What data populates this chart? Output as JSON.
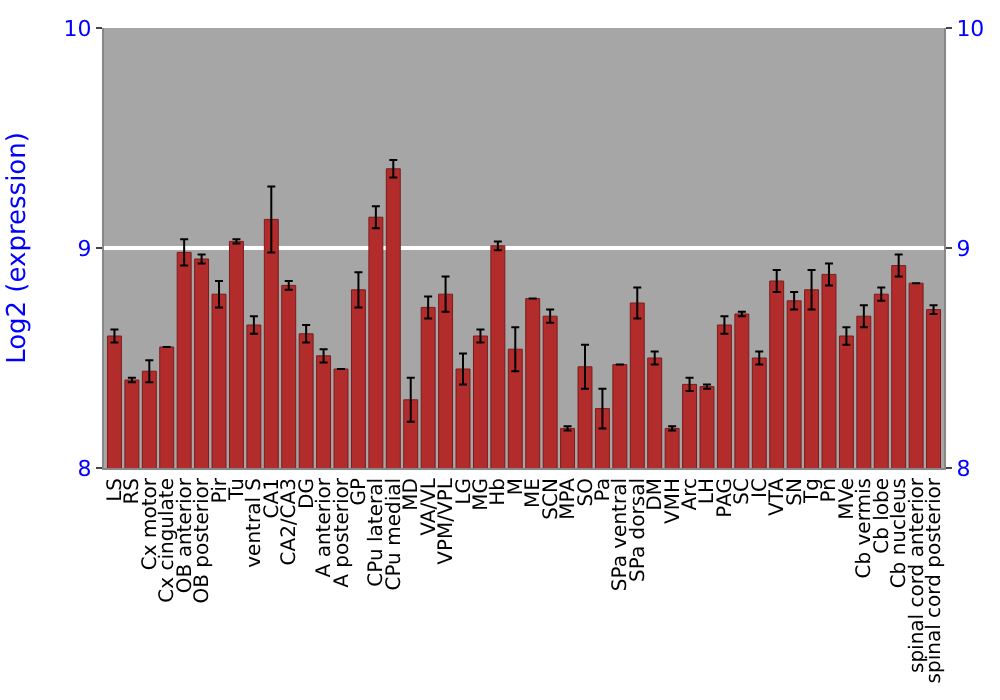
{
  "chart_data": {
    "type": "bar",
    "ylabel": "Log2 (expression)",
    "categories": [
      "LS",
      "RS",
      "Cx motor",
      "Cx cingulate",
      "OB anterior",
      "OB posterior",
      "Pir",
      "Tu",
      "ventral S",
      "CA1",
      "CA2/CA3",
      "DG",
      "A anterior",
      "A posterior",
      "GP",
      "CPu lateral",
      "CPu medial",
      "MD",
      "VA/VL",
      "VPM/VPL",
      "LG",
      "MG",
      "Hb",
      "M",
      "ME",
      "SCN",
      "MPA",
      "SO",
      "Pa",
      "SPa ventral",
      "SPa dorsal",
      "DM",
      "VMH",
      "Arc",
      "LH",
      "PAG",
      "SC",
      "IC",
      "VTA",
      "SN",
      "Tg",
      "Pn",
      "MVe",
      "Cb vermis",
      "Cb lobe",
      "Cb nucleus",
      "spinal cord anterior",
      "spinal cord posterior"
    ],
    "values": [
      8.6,
      8.4,
      8.44,
      8.55,
      8.98,
      8.95,
      8.79,
      9.03,
      8.65,
      9.13,
      8.83,
      8.61,
      8.51,
      8.45,
      8.81,
      9.14,
      9.36,
      8.31,
      8.73,
      8.79,
      8.45,
      8.6,
      9.01,
      8.54,
      8.77,
      8.69,
      8.18,
      8.46,
      8.27,
      8.47,
      8.75,
      8.5,
      8.18,
      8.38,
      8.37,
      8.65,
      8.7,
      8.5,
      8.85,
      8.76,
      8.81,
      8.88,
      8.6,
      8.69,
      8.79,
      8.92,
      8.84,
      8.72
    ],
    "errors": [
      0.03,
      0.01,
      0.05,
      null,
      0.06,
      0.02,
      0.06,
      0.01,
      0.04,
      0.15,
      0.02,
      0.04,
      0.03,
      null,
      0.08,
      0.05,
      0.04,
      0.1,
      0.05,
      0.08,
      0.07,
      0.03,
      0.02,
      0.1,
      null,
      0.03,
      0.01,
      0.1,
      0.09,
      null,
      0.07,
      0.03,
      0.01,
      0.03,
      0.01,
      0.04,
      0.01,
      0.03,
      0.05,
      0.04,
      0.09,
      0.05,
      0.04,
      0.05,
      0.03,
      0.05,
      null,
      0.02
    ],
    "color": "#b22c2c",
    "ylim": [
      8,
      10
    ],
    "yticks": [
      8,
      9,
      10
    ],
    "y2lim": [
      8,
      10
    ],
    "y2ticks": [
      8,
      9,
      10
    ],
    "grid": "y"
  }
}
